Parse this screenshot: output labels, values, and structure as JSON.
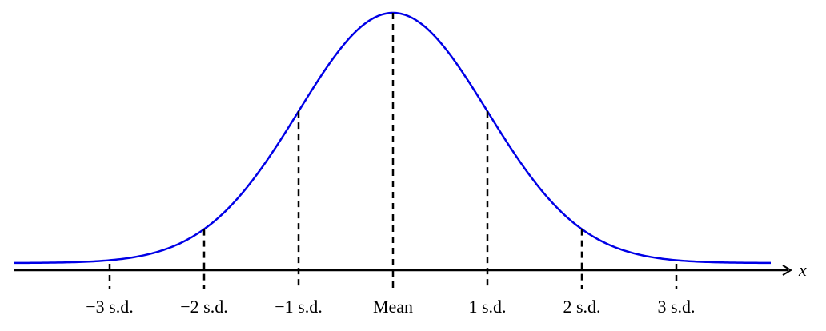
{
  "axis_label": "x",
  "ticks": [
    "−3 s.d.",
    "−2 s.d.",
    "−1 s.d.",
    "Mean",
    "1 s.d.",
    "2 s.d.",
    "3 s.d."
  ]
}
